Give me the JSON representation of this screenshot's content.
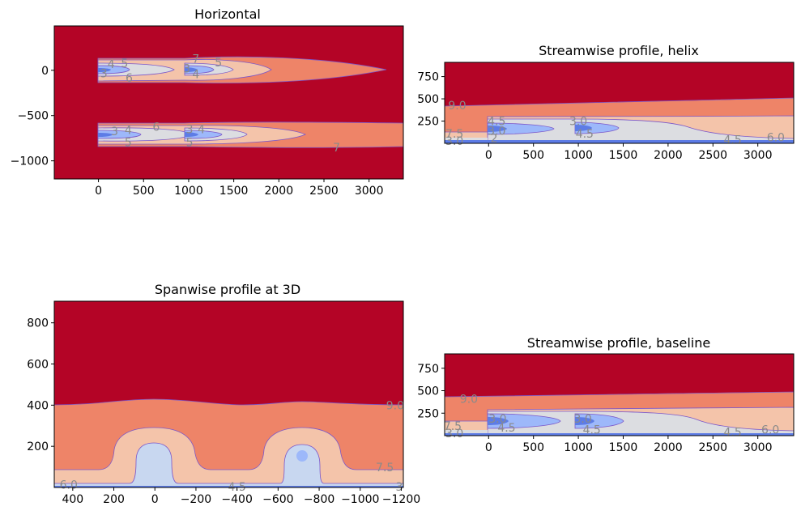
{
  "colors": {
    "c_high": "#b40426",
    "c_mid_high": "#ee8468",
    "c_mid": "#f4c4aa",
    "c_light": "#dcdde1",
    "c_core": "#c8d7f0",
    "c_low": "#9db8fa",
    "c_lowest": "#5d7ce6",
    "contour_line": "#7b57c9",
    "contour_label": "#8a8a8a"
  },
  "chart_data": [
    {
      "id": "horizontal",
      "type": "contour",
      "title": "Horizontal",
      "xlim": [
        -490,
        3380
      ],
      "ylim": [
        -1200,
        490
      ],
      "x_ticks": [
        0,
        500,
        1000,
        1500,
        2000,
        2500,
        3000
      ],
      "x_tick_labels": [
        "0",
        "500",
        "1000",
        "1500",
        "2000",
        "2500",
        "3000"
      ],
      "y_ticks": [
        0,
        -500,
        -1000
      ],
      "y_tick_labels": [
        "0",
        "−500",
        "−1000"
      ],
      "contour_labels": [
        {
          "text": "4",
          "x": 140,
          "y": 60
        },
        {
          "text": "5",
          "x": 290,
          "y": 70
        },
        {
          "text": "3",
          "x": 60,
          "y": -40
        },
        {
          "text": "6",
          "x": 340,
          "y": -90
        },
        {
          "text": "7",
          "x": 1080,
          "y": 120
        },
        {
          "text": "5",
          "x": 1330,
          "y": 80
        },
        {
          "text": "3",
          "x": 980,
          "y": 10
        },
        {
          "text": "4",
          "x": 1080,
          "y": -50
        },
        {
          "text": "3",
          "x": 180,
          "y": -680
        },
        {
          "text": "4",
          "x": 330,
          "y": -670
        },
        {
          "text": "6",
          "x": 640,
          "y": -630
        },
        {
          "text": "5",
          "x": 330,
          "y": -800
        },
        {
          "text": "3",
          "x": 1010,
          "y": -660
        },
        {
          "text": "4",
          "x": 1140,
          "y": -660
        },
        {
          "text": "5",
          "x": 1010,
          "y": -800
        },
        {
          "text": "7",
          "x": 2640,
          "y": -860
        }
      ]
    },
    {
      "id": "helix",
      "type": "contour",
      "title": "Streamwise profile, helix",
      "xlim": [
        -490,
        3400
      ],
      "ylim": [
        0,
        910
      ],
      "x_ticks": [
        0,
        500,
        1000,
        1500,
        2000,
        2500,
        3000
      ],
      "x_tick_labels": [
        "0",
        "500",
        "1000",
        "1500",
        "2000",
        "2500",
        "3000"
      ],
      "y_ticks": [
        250,
        500,
        750
      ],
      "y_tick_labels": [
        "250",
        "500",
        "750"
      ],
      "contour_labels": [
        {
          "text": "9.0",
          "x": -350,
          "y": 420
        },
        {
          "text": "7.5",
          "x": -380,
          "y": 100
        },
        {
          "text": "3.0",
          "x": -380,
          "y": 20
        },
        {
          "text": "4.5",
          "x": 90,
          "y": 240
        },
        {
          "text": "3.0",
          "x": 90,
          "y": 130
        },
        {
          "text": "2",
          "x": 60,
          "y": 50
        },
        {
          "text": "4.5",
          "x": 1070,
          "y": 100
        },
        {
          "text": "3.0",
          "x": 1000,
          "y": 240
        },
        {
          "text": "4.5",
          "x": 2720,
          "y": 30
        },
        {
          "text": "6.0",
          "x": 3200,
          "y": 60
        }
      ]
    },
    {
      "id": "spanwise",
      "type": "contour",
      "title": "Spanwise profile at 3D",
      "xlim": [
        490,
        -1210
      ],
      "ylim": [
        0,
        905
      ],
      "x_ticks": [
        400,
        200,
        0,
        -200,
        -400,
        -600,
        -800,
        -1000,
        -1200
      ],
      "x_tick_labels": [
        "400",
        "200",
        "0",
        "−200",
        "−400",
        "−600",
        "−800",
        "−1000",
        "−1200"
      ],
      "y_ticks": [
        200,
        400,
        600,
        800
      ],
      "y_tick_labels": [
        "200",
        "400",
        "600",
        "800"
      ],
      "contour_labels": [
        {
          "text": "9.0",
          "x": -1170,
          "y": 395
        },
        {
          "text": "7.5",
          "x": -1120,
          "y": 95
        },
        {
          "text": "6.0",
          "x": 420,
          "y": 10
        },
        {
          "text": "4.5",
          "x": -400,
          "y": 0
        },
        {
          "text": "3",
          "x": -1190,
          "y": 0
        }
      ]
    },
    {
      "id": "baseline",
      "type": "contour",
      "title": "Streamwise profile, baseline",
      "xlim": [
        -490,
        3400
      ],
      "ylim": [
        0,
        910
      ],
      "x_ticks": [
        0,
        500,
        1000,
        1500,
        2000,
        2500,
        3000
      ],
      "x_tick_labels": [
        "0",
        "500",
        "1000",
        "1500",
        "2000",
        "2500",
        "3000"
      ],
      "y_ticks": [
        250,
        500,
        750
      ],
      "y_tick_labels": [
        "250",
        "500",
        "750"
      ],
      "contour_labels": [
        {
          "text": "9.0",
          "x": -220,
          "y": 400
        },
        {
          "text": "7.5",
          "x": -400,
          "y": 100
        },
        {
          "text": "3.0",
          "x": -380,
          "y": 20
        },
        {
          "text": "3.0",
          "x": 100,
          "y": 180
        },
        {
          "text": "4.5",
          "x": 200,
          "y": 80
        },
        {
          "text": "3.0",
          "x": 1050,
          "y": 180
        },
        {
          "text": "4.5",
          "x": 1150,
          "y": 60
        },
        {
          "text": "4.5",
          "x": 2720,
          "y": 30
        },
        {
          "text": "6.0",
          "x": 3140,
          "y": 60
        }
      ]
    }
  ]
}
